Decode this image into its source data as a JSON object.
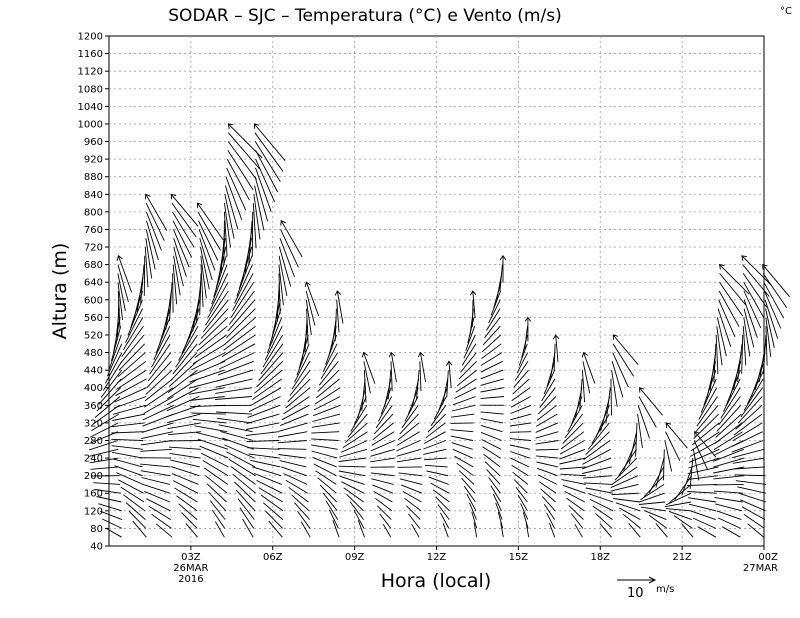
{
  "chart_data": {
    "type": "wind-barb-time-height",
    "title": "SODAR – SJC – Temperatura (°C) e Vento (m/s)",
    "unit_corner": "°C",
    "xlabel": "Hora (local)",
    "ylabel": "Altura (m)",
    "yticks": [
      40,
      80,
      120,
      160,
      200,
      240,
      280,
      320,
      360,
      400,
      440,
      480,
      520,
      560,
      600,
      640,
      680,
      720,
      760,
      800,
      840,
      880,
      920,
      960,
      1000,
      1040,
      1080,
      1120,
      1160,
      1200
    ],
    "ylim": [
      40,
      1200
    ],
    "xlim_hours": [
      0,
      24
    ],
    "xticks": [
      {
        "hour": 3,
        "label": "03Z",
        "sub1": "26MAR",
        "sub2": "2016"
      },
      {
        "hour": 6,
        "label": "06Z"
      },
      {
        "hour": 9,
        "label": "09Z"
      },
      {
        "hour": 12,
        "label": "12Z"
      },
      {
        "hour": 15,
        "label": "15Z"
      },
      {
        "hour": 18,
        "label": "18Z"
      },
      {
        "hour": 21,
        "label": "21Z"
      },
      {
        "hour": 24,
        "label": "00Z",
        "sub1": "27MAR"
      }
    ],
    "reference_vector": {
      "value": "10",
      "unit": "m/s"
    },
    "profiles": [
      {
        "hour": 0.4,
        "top": 700,
        "dir_low": 300,
        "dir_high": 160,
        "speed_low": 4,
        "speed_high": 11
      },
      {
        "hour": 1.3,
        "top": 840,
        "dir_low": 320,
        "dir_high": 150,
        "speed_low": 5,
        "speed_high": 12
      },
      {
        "hour": 2.3,
        "top": 840,
        "dir_low": 310,
        "dir_high": 140,
        "speed_low": 5,
        "speed_high": 12
      },
      {
        "hour": 3.3,
        "top": 820,
        "dir_low": 320,
        "dir_high": 145,
        "speed_low": 4,
        "speed_high": 13
      },
      {
        "hour": 4.3,
        "top": 1000,
        "dir_low": 330,
        "dir_high": 135,
        "speed_low": 4,
        "speed_high": 14
      },
      {
        "hour": 5.3,
        "top": 1000,
        "dir_low": 330,
        "dir_high": 140,
        "speed_low": 5,
        "speed_high": 14
      },
      {
        "hour": 6.3,
        "top": 780,
        "dir_low": 320,
        "dir_high": 150,
        "speed_low": 5,
        "speed_high": 12
      },
      {
        "hour": 7.3,
        "top": 640,
        "dir_low": 330,
        "dir_high": 160,
        "speed_low": 4,
        "speed_high": 10
      },
      {
        "hour": 8.4,
        "top": 620,
        "dir_low": 340,
        "dir_high": 170,
        "speed_low": 4,
        "speed_high": 9
      },
      {
        "hour": 9.4,
        "top": 480,
        "dir_low": 340,
        "dir_high": 160,
        "speed_low": 4,
        "speed_high": 9
      },
      {
        "hour": 10.4,
        "top": 480,
        "dir_low": 330,
        "dir_high": 170,
        "speed_low": 3,
        "speed_high": 8
      },
      {
        "hour": 11.4,
        "top": 480,
        "dir_low": 330,
        "dir_high": 170,
        "speed_low": 3,
        "speed_high": 8
      },
      {
        "hour": 12.4,
        "top": 460,
        "dir_low": 340,
        "dir_high": 175,
        "speed_low": 3,
        "speed_high": 7
      },
      {
        "hour": 13.4,
        "top": 620,
        "dir_low": 350,
        "dir_high": 175,
        "speed_low": 3,
        "speed_high": 7
      },
      {
        "hour": 14.4,
        "top": 700,
        "dir_low": 350,
        "dir_high": 180,
        "speed_low": 3,
        "speed_high": 7
      },
      {
        "hour": 15.4,
        "top": 560,
        "dir_low": 350,
        "dir_high": 180,
        "speed_low": 3,
        "speed_high": 6
      },
      {
        "hour": 16.4,
        "top": 520,
        "dir_low": 340,
        "dir_high": 175,
        "speed_low": 3,
        "speed_high": 7
      },
      {
        "hour": 17.4,
        "top": 480,
        "dir_low": 330,
        "dir_high": 160,
        "speed_low": 3,
        "speed_high": 9
      },
      {
        "hour": 18.4,
        "top": 520,
        "dir_low": 320,
        "dir_high": 140,
        "speed_low": 4,
        "speed_high": 11
      },
      {
        "hour": 19.4,
        "top": 400,
        "dir_low": 320,
        "dir_high": 140,
        "speed_low": 4,
        "speed_high": 10
      },
      {
        "hour": 20.4,
        "top": 320,
        "dir_low": 320,
        "dir_high": 140,
        "speed_low": 4,
        "speed_high": 9
      },
      {
        "hour": 21.4,
        "top": 300,
        "dir_low": 320,
        "dir_high": 140,
        "speed_low": 4,
        "speed_high": 9
      },
      {
        "hour": 22.3,
        "top": 680,
        "dir_low": 300,
        "dir_high": 135,
        "speed_low": 5,
        "speed_high": 12
      },
      {
        "hour": 23.2,
        "top": 700,
        "dir_low": 300,
        "dir_high": 135,
        "speed_low": 5,
        "speed_high": 12
      },
      {
        "hour": 24.0,
        "top": 680,
        "dir_low": 310,
        "dir_high": 140,
        "speed_low": 5,
        "speed_high": 12
      }
    ]
  }
}
